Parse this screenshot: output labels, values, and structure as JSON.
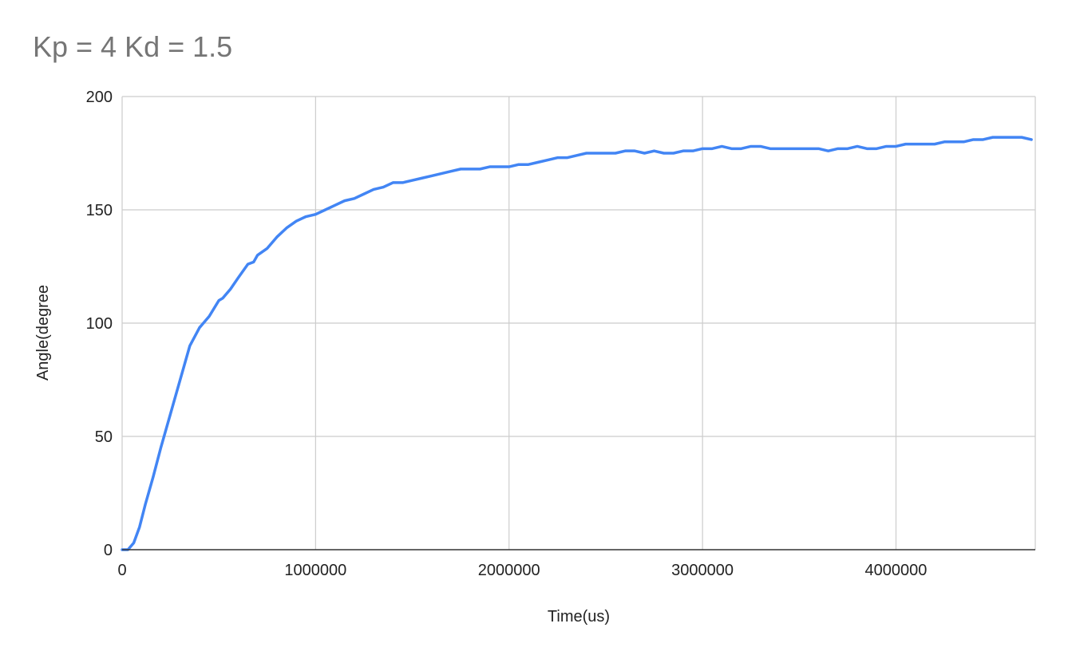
{
  "chart_data": {
    "type": "line",
    "title": "Kp = 4 Kd = 1.5",
    "xlabel": "Time(us)",
    "ylabel": "Angle(degree",
    "xlim": [
      0,
      4720000
    ],
    "ylim": [
      0,
      200
    ],
    "x_ticks": [
      0,
      1000000,
      2000000,
      3000000,
      4000000
    ],
    "y_ticks": [
      0,
      50,
      100,
      150,
      200
    ],
    "x_tick_labels": [
      "0",
      "1000000",
      "2000000",
      "3000000",
      "4000000"
    ],
    "y_tick_labels": [
      "0",
      "50",
      "100",
      "150",
      "200"
    ],
    "grid": true,
    "legend": "none",
    "line_color": "#4285f4",
    "series": [
      {
        "x": [
          0,
          30000,
          60000,
          90000,
          120000,
          160000,
          200000,
          250000,
          300000,
          350000,
          400000,
          450000,
          500000,
          520000,
          560000,
          600000,
          650000,
          680000,
          700000,
          750000,
          800000,
          850000,
          900000,
          950000,
          1000000,
          1050000,
          1100000,
          1150000,
          1200000,
          1250000,
          1300000,
          1350000,
          1400000,
          1450000,
          1500000,
          1550000,
          1600000,
          1650000,
          1700000,
          1750000,
          1800000,
          1850000,
          1900000,
          1950000,
          2000000,
          2050000,
          2100000,
          2150000,
          2200000,
          2250000,
          2300000,
          2350000,
          2400000,
          2450000,
          2500000,
          2550000,
          2600000,
          2650000,
          2700000,
          2750000,
          2800000,
          2850000,
          2900000,
          2950000,
          3000000,
          3050000,
          3100000,
          3150000,
          3200000,
          3250000,
          3300000,
          3350000,
          3400000,
          3450000,
          3500000,
          3550000,
          3600000,
          3650000,
          3700000,
          3750000,
          3800000,
          3850000,
          3900000,
          3950000,
          4000000,
          4050000,
          4100000,
          4150000,
          4200000,
          4250000,
          4300000,
          4350000,
          4400000,
          4450000,
          4500000,
          4550000,
          4600000,
          4650000,
          4700000
        ],
        "y": [
          0,
          0,
          3,
          10,
          20,
          32,
          45,
          60,
          75,
          90,
          98,
          103,
          110,
          111,
          115,
          120,
          126,
          127,
          130,
          133,
          138,
          142,
          145,
          147,
          148,
          150,
          152,
          154,
          155,
          157,
          159,
          160,
          162,
          162,
          163,
          164,
          165,
          166,
          167,
          168,
          168,
          168,
          169,
          169,
          169,
          170,
          170,
          171,
          172,
          173,
          173,
          174,
          175,
          175,
          175,
          175,
          176,
          176,
          175,
          176,
          175,
          175,
          176,
          176,
          177,
          177,
          178,
          177,
          177,
          178,
          178,
          177,
          177,
          177,
          177,
          177,
          177,
          176,
          177,
          177,
          178,
          177,
          177,
          178,
          178,
          179,
          179,
          179,
          179,
          180,
          180,
          180,
          181,
          181,
          182,
          182,
          182,
          182,
          181
        ]
      }
    ]
  }
}
